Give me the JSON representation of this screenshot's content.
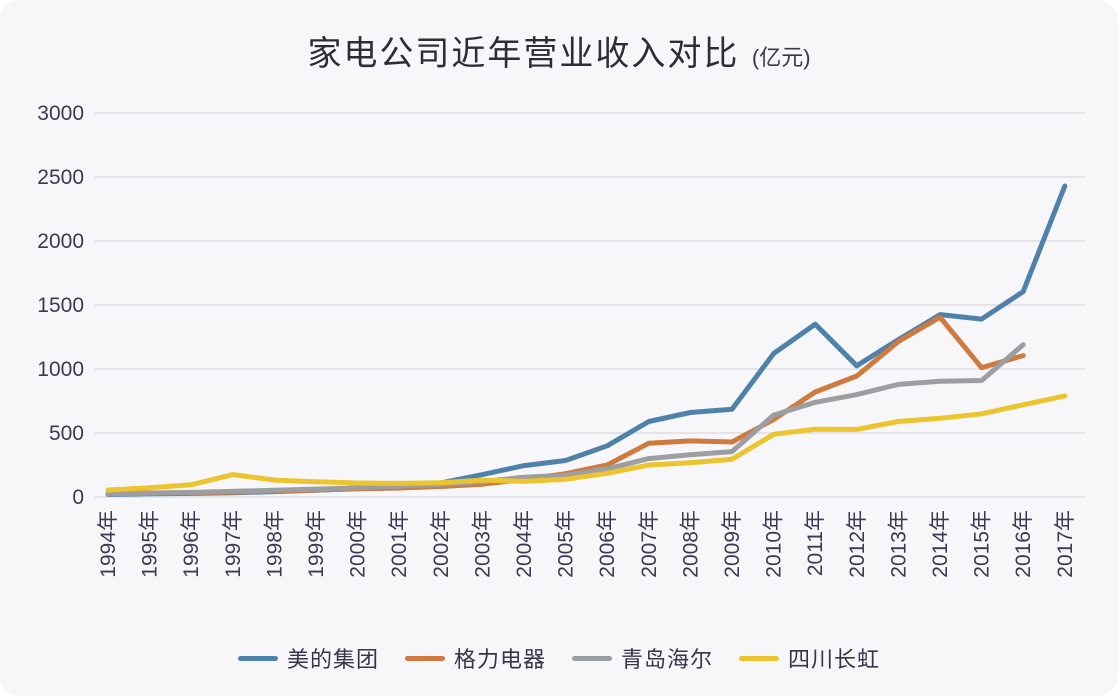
{
  "title": {
    "main": "家电公司近年营业收入对比",
    "unit": "(亿元)"
  },
  "palette": {
    "background": "#f7f7f9",
    "gridline": "#d8d9dd",
    "tick_label": "#3d3853",
    "title_text": "#2e2d36"
  },
  "y_ticks": [
    "0",
    "500",
    "1000",
    "1500",
    "2000",
    "2500",
    "3000"
  ],
  "chart_data": {
    "type": "line",
    "title": "家电公司近年营业收入对比 (亿元)",
    "xlabel": "",
    "ylabel": "",
    "ylim": [
      0,
      3000
    ],
    "ytick_step": 500,
    "grid": true,
    "legend_position": "bottom",
    "categories": [
      "1994年",
      "1995年",
      "1996年",
      "1997年",
      "1998年",
      "1999年",
      "2000年",
      "2001年",
      "2002年",
      "2003年",
      "2004年",
      "2005年",
      "2006年",
      "2007年",
      "2008年",
      "2009年",
      "2010年",
      "2011年",
      "2012年",
      "2013年",
      "2014年",
      "2015年",
      "2016年",
      "2017年"
    ],
    "series": [
      {
        "key": "midea",
        "name": "美的集团",
        "color": "#4f82aa",
        "values": [
          20,
          25,
          28,
          33,
          42,
          52,
          67,
          84,
          110,
          175,
          245,
          285,
          400,
          590,
          660,
          685,
          1120,
          1350,
          1025,
          1230,
          1425,
          1390,
          1605,
          2430
        ]
      },
      {
        "key": "gree",
        "name": "格力电器",
        "color": "#cf7a3e",
        "values": [
          28,
          31,
          34,
          38,
          45,
          55,
          63,
          70,
          82,
          100,
          138,
          182,
          250,
          420,
          438,
          430,
          605,
          820,
          945,
          1215,
          1405,
          1010,
          1105,
          null
        ]
      },
      {
        "key": "haier",
        "name": "青岛海尔",
        "color": "#9d9ea2",
        "values": [
          25,
          30,
          36,
          44,
          52,
          62,
          73,
          85,
          98,
          120,
          155,
          170,
          220,
          300,
          330,
          355,
          640,
          740,
          800,
          880,
          905,
          910,
          1190,
          null
        ]
      },
      {
        "key": "changhong",
        "name": "四川长虹",
        "color": "#ecc42d",
        "values": [
          55,
          72,
          95,
          175,
          132,
          119,
          109,
          106,
          112,
          132,
          122,
          138,
          185,
          250,
          268,
          295,
          490,
          530,
          528,
          590,
          615,
          650,
          720,
          790
        ]
      }
    ]
  }
}
